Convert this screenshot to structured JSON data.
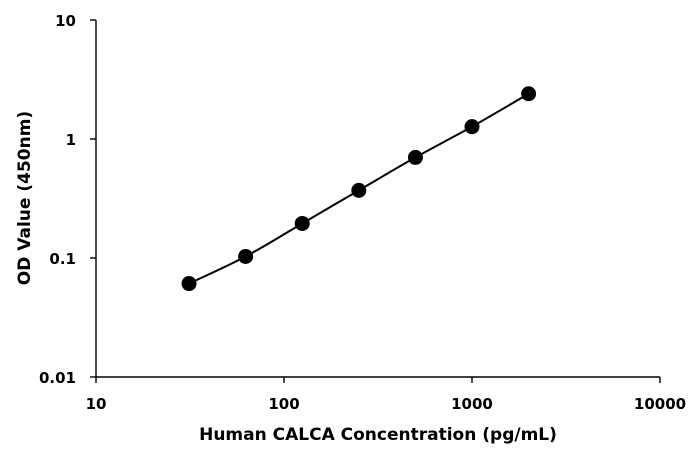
{
  "chart_data": {
    "type": "scatter",
    "title": "",
    "xlabel": "Human CALCA Concentration (pg/mL)",
    "ylabel": "OD Value (450nm)",
    "xscale": "log",
    "yscale": "log",
    "xlim": [
      10,
      10000
    ],
    "ylim": [
      0.01,
      10
    ],
    "xticks": [
      "10",
      "100",
      "1000",
      "10000"
    ],
    "yticks": [
      "0.01",
      "0.1",
      "1",
      "10"
    ],
    "grid": false,
    "legend": "none",
    "series": [
      {
        "x": [
          31.25,
          62.5,
          125,
          250,
          500,
          1000,
          2000
        ],
        "y": [
          0.061,
          0.103,
          0.195,
          0.37,
          0.7,
          1.27,
          2.4
        ],
        "marker": "circle",
        "line": "smooth",
        "color": "#000000"
      }
    ]
  }
}
